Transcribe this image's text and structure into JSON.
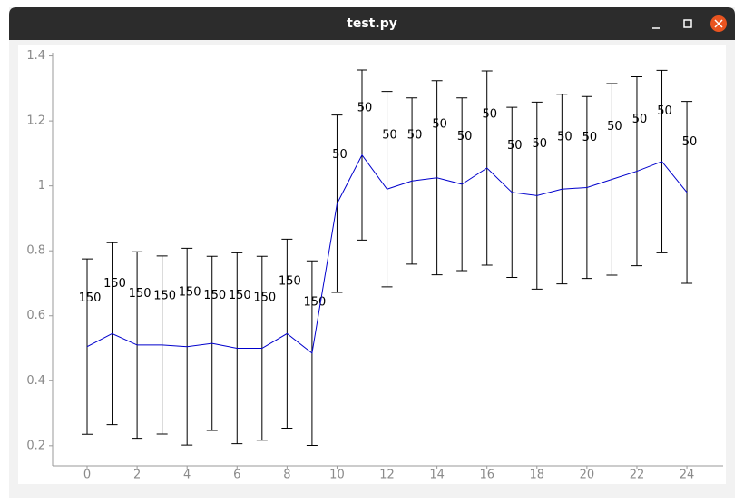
{
  "window": {
    "title": "test.py"
  },
  "chart_data": {
    "type": "errorbar",
    "x": [
      0,
      1,
      2,
      3,
      4,
      5,
      6,
      7,
      8,
      9,
      10,
      11,
      12,
      13,
      14,
      15,
      16,
      17,
      18,
      19,
      20,
      21,
      22,
      23,
      24
    ],
    "values": [
      0.505,
      0.545,
      0.51,
      0.51,
      0.505,
      0.515,
      0.5,
      0.5,
      0.545,
      0.485,
      0.945,
      1.095,
      0.99,
      1.015,
      1.025,
      1.005,
      1.055,
      0.98,
      0.97,
      0.99,
      0.995,
      1.02,
      1.045,
      1.075,
      0.98
    ],
    "errors": [
      0.27,
      0.28,
      0.287,
      0.274,
      0.303,
      0.268,
      0.294,
      0.283,
      0.291,
      0.284,
      0.273,
      0.262,
      0.301,
      0.256,
      0.299,
      0.266,
      0.299,
      0.262,
      0.288,
      0.292,
      0.28,
      0.295,
      0.291,
      0.281,
      0.28
    ],
    "counts": [
      150,
      150,
      150,
      150,
      150,
      150,
      150,
      150,
      150,
      150,
      50,
      50,
      50,
      50,
      50,
      50,
      50,
      50,
      50,
      50,
      50,
      50,
      50,
      50,
      50
    ],
    "color": "#0000cc",
    "error_color": "#000000",
    "xlim": [
      -1.38,
      25.45
    ],
    "ylim": [
      0.138,
      1.41
    ],
    "xticks": [
      0,
      2,
      4,
      6,
      8,
      10,
      12,
      14,
      16,
      18,
      20,
      22,
      24
    ],
    "yticks": [
      0.2,
      0.4,
      0.6,
      0.8,
      1,
      1.2,
      1.4
    ]
  }
}
